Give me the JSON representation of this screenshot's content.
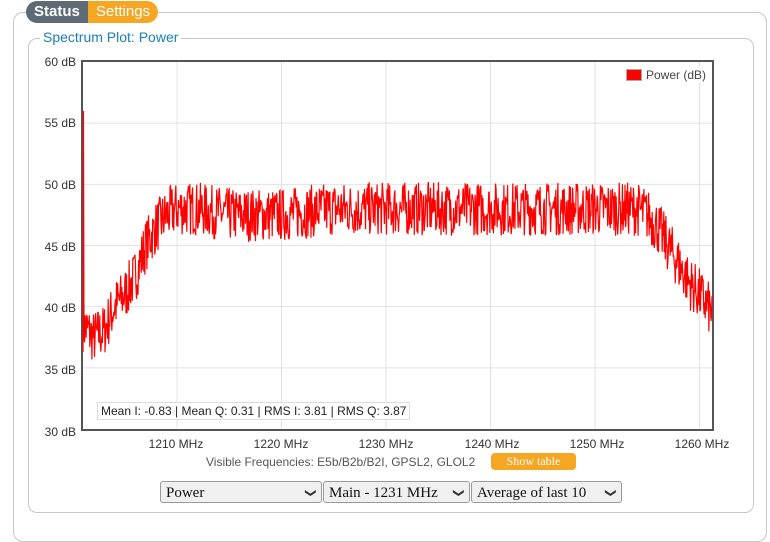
{
  "tabs": [
    {
      "label": "Status"
    },
    {
      "label": "Settings"
    }
  ],
  "panel_title": "Spectrum Plot: Power",
  "chart_data": {
    "type": "line",
    "y_ticks": [
      "60 dB",
      "55 dB",
      "50 dB",
      "45 dB",
      "40 dB",
      "35 dB",
      "30 dB"
    ],
    "x_ticks": [
      "1210 MHz",
      "1220 MHz",
      "1230 MHz",
      "1240 MHz",
      "1250 MHz",
      "1260 MHz"
    ],
    "ylim": [
      30,
      60
    ],
    "xlim": [
      1201,
      1261.2
    ],
    "series": [
      {
        "name": "Power (dB)",
        "color": "#ff0000",
        "envelope": [
          [
            1201.0,
            38.5
          ],
          [
            1202.0,
            37.5
          ],
          [
            1203.0,
            38.0
          ],
          [
            1204.0,
            40.0
          ],
          [
            1205.0,
            41.0
          ],
          [
            1206.0,
            42.5
          ],
          [
            1207.0,
            45.0
          ],
          [
            1208.0,
            46.5
          ],
          [
            1209.0,
            47.5
          ],
          [
            1210.0,
            48.0
          ],
          [
            1212.0,
            48.0
          ],
          [
            1215.0,
            47.5
          ],
          [
            1220.0,
            47.5
          ],
          [
            1225.0,
            48.0
          ],
          [
            1230.0,
            48.0
          ],
          [
            1235.0,
            48.0
          ],
          [
            1240.0,
            48.0
          ],
          [
            1245.0,
            48.0
          ],
          [
            1250.0,
            48.0
          ],
          [
            1254.0,
            48.0
          ],
          [
            1255.0,
            47.5
          ],
          [
            1256.0,
            46.5
          ],
          [
            1257.0,
            45.0
          ],
          [
            1258.0,
            43.5
          ],
          [
            1259.0,
            42.0
          ],
          [
            1260.0,
            41.0
          ],
          [
            1261.2,
            39.5
          ]
        ],
        "noise_amplitude": 2.2,
        "spike": {
          "x": 1201.05,
          "y": 56.0
        }
      }
    ],
    "grid": true,
    "legend": "top-right"
  },
  "stats": "Mean I: -0.83 | Mean Q: 0.31 | RMS I: 3.81 | RMS Q: 3.87",
  "visible_frequencies": "Visible Frequencies: E5b/B2b/B2I, GPSL2, GLOL2",
  "show_table_label": "Show table",
  "selects": [
    {
      "value": "Power"
    },
    {
      "value": "Main - 1231 MHz"
    },
    {
      "value": "Average of last 10"
    }
  ]
}
